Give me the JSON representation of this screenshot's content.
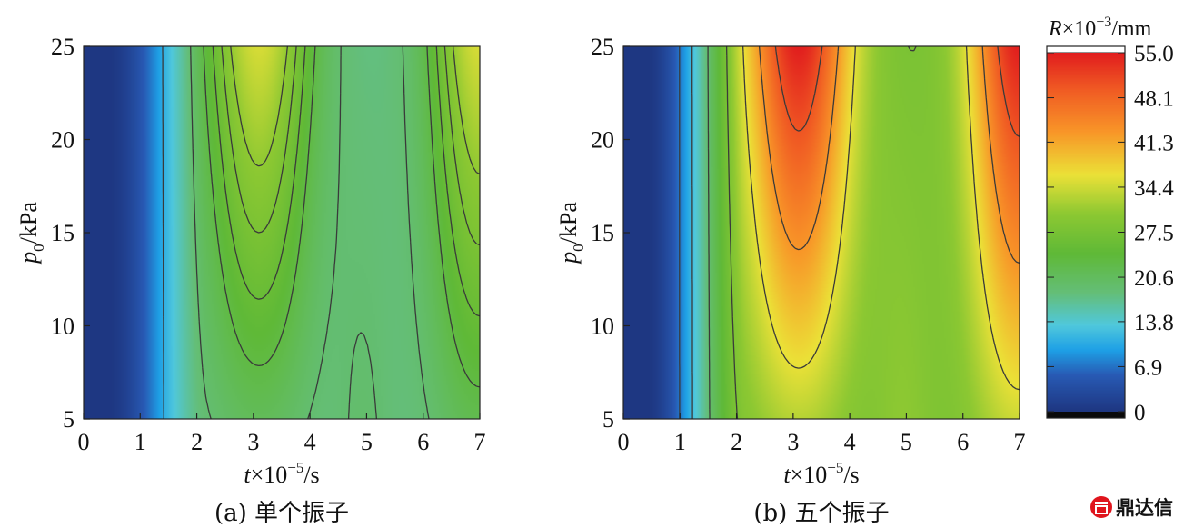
{
  "chart_data": [
    {
      "type": "heatmap",
      "caption": "(a) 单个振子",
      "xlabel": {
        "var": "t",
        "mid": "×10",
        "exp": "−5",
        "unit": "/s"
      },
      "ylabel": {
        "var": "p",
        "sub": "0",
        "unit": "/kPa"
      },
      "xlim": [
        0,
        7
      ],
      "ylim": [
        5,
        25
      ],
      "xticks": [
        "0",
        "1",
        "2",
        "3",
        "4",
        "5",
        "6",
        "7"
      ],
      "yticks": [
        "5",
        "10",
        "15",
        "20",
        "25"
      ],
      "contour_levels": [
        10.5,
        19,
        23,
        25.5,
        28,
        30.5
      ],
      "peak_R": 35
    },
    {
      "type": "heatmap",
      "caption": "(b) 五个振子",
      "xlabel": {
        "var": "t",
        "mid": "×10",
        "exp": "−5",
        "unit": "/s"
      },
      "ylabel": {
        "var": "p",
        "sub": "0",
        "unit": "/kPa"
      },
      "xlim": [
        0,
        7
      ],
      "ylim": [
        5,
        25
      ],
      "xticks": [
        "0",
        "1",
        "2",
        "3",
        "4",
        "5",
        "6",
        "7"
      ],
      "yticks": [
        "5",
        "10",
        "15",
        "20",
        "25"
      ],
      "contour_levels": [
        7,
        12,
        19,
        28,
        36,
        43,
        50
      ],
      "peak_R": 55
    }
  ],
  "colorbar": {
    "title_var": "R",
    "title_mid": "×10",
    "title_exp": "−3",
    "title_unit": "/mm",
    "range": [
      0,
      55
    ],
    "ticks": [
      "55.0",
      "48.1",
      "41.3",
      "34.4",
      "27.5",
      "20.6",
      "13.8",
      "6.9",
      "0"
    ]
  },
  "watermark": {
    "text": "鼎达信"
  }
}
